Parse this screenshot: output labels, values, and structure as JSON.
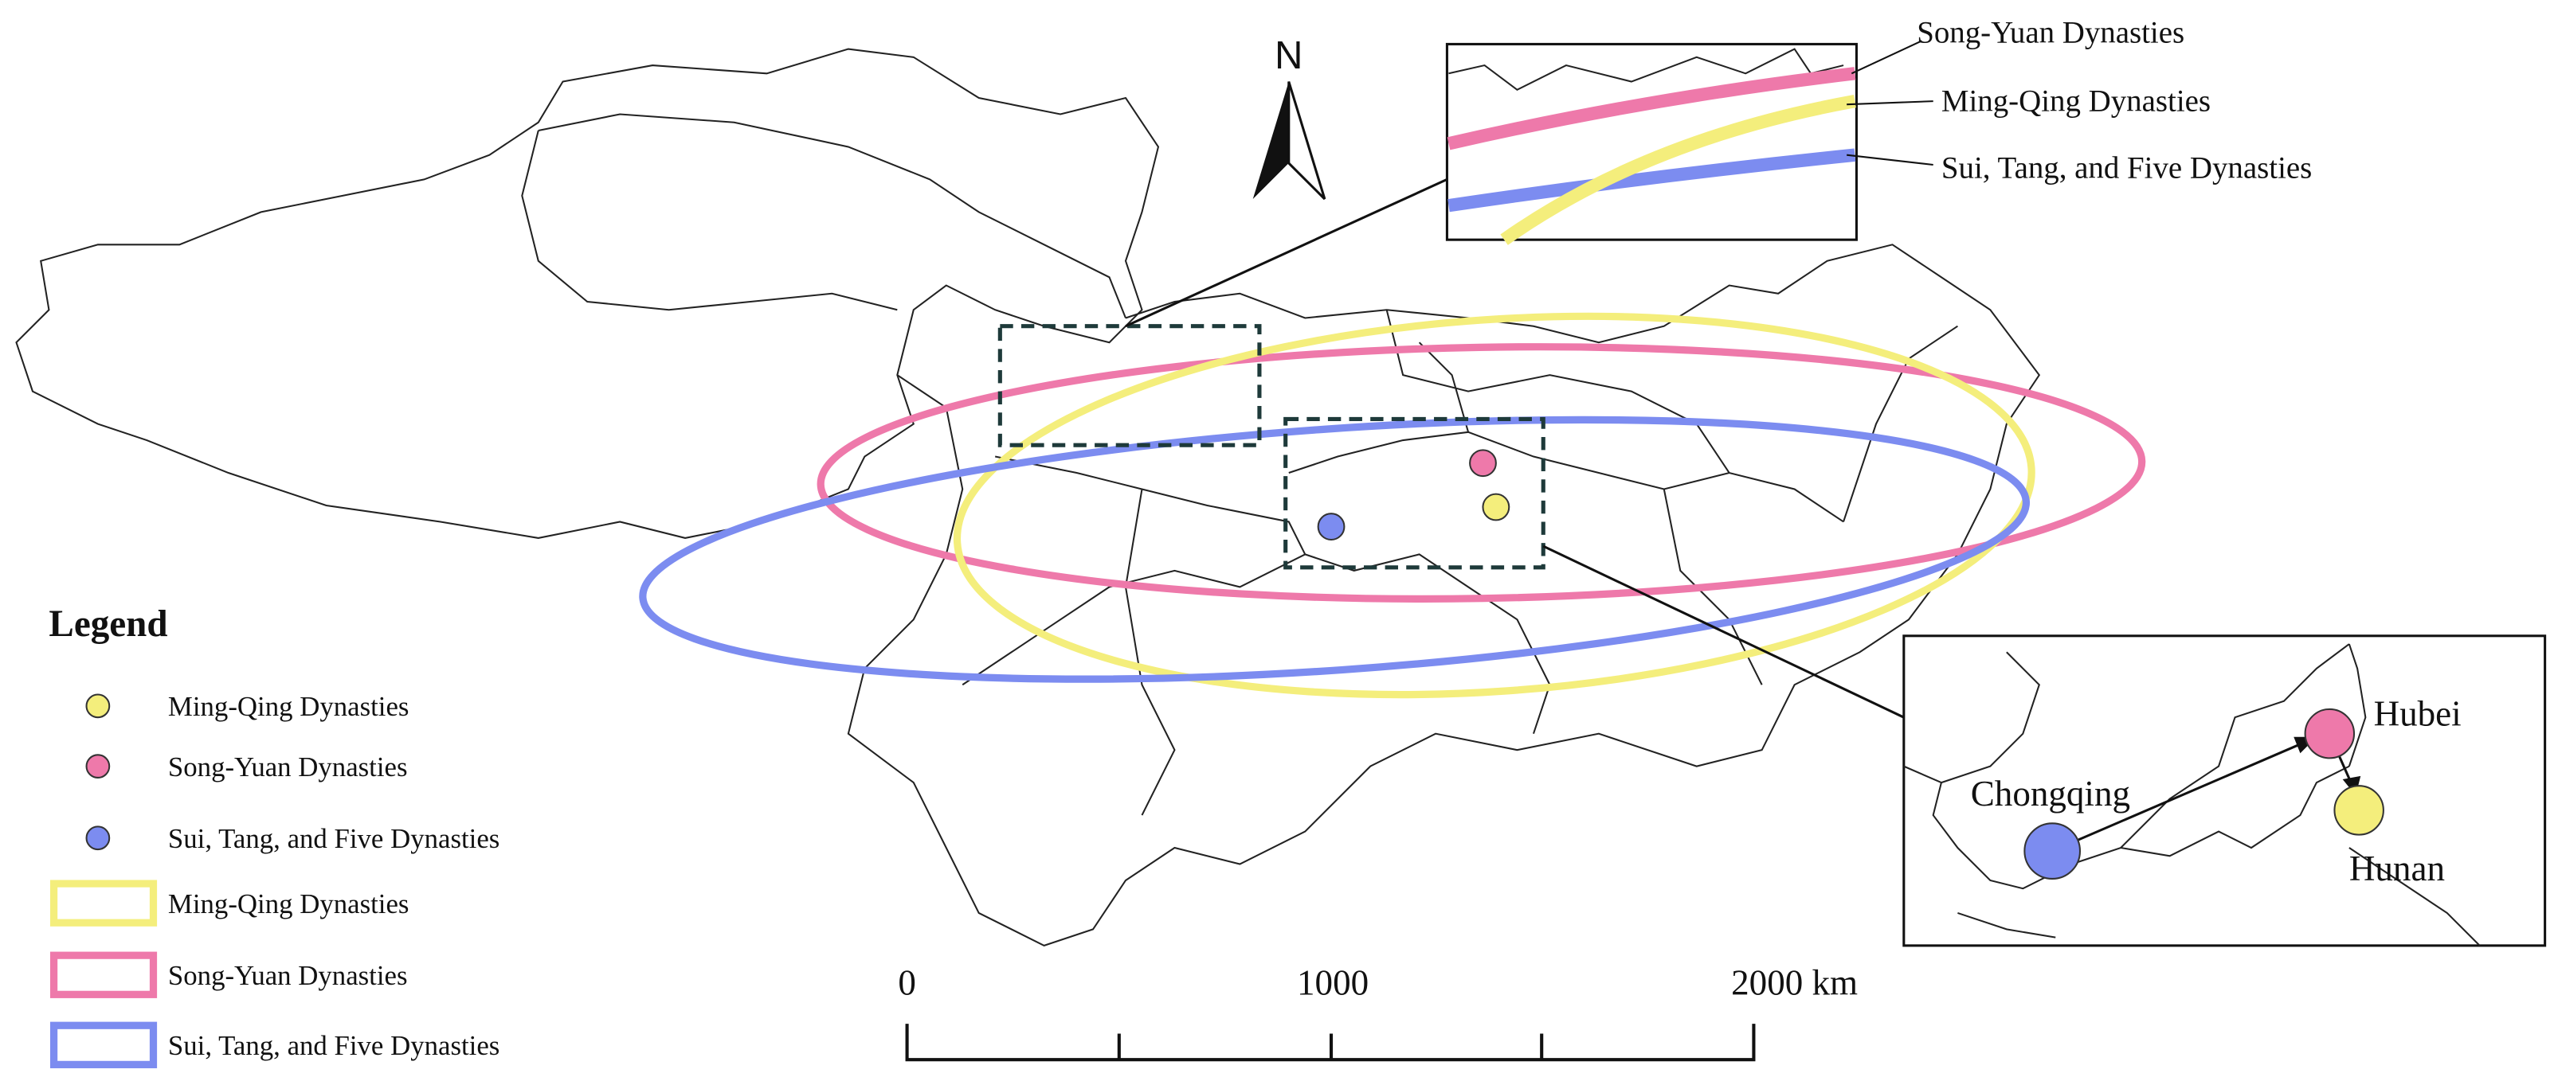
{
  "north": "N",
  "legend": {
    "title": "Legend"
  },
  "series": [
    {
      "name": "Ming-Qing Dynasties",
      "color": "#f4ee7c"
    },
    {
      "name": "Song-Yuan Dynasties",
      "color": "#ee79aa"
    },
    {
      "name": "Sui, Tang, and Five Dynasties",
      "color": "#7c8cf0"
    }
  ],
  "inset": {
    "labels": [
      "Chongqing",
      "Hubei",
      "Hunan"
    ]
  },
  "scale_bar": {
    "labels": [
      "0",
      "1000",
      "2000 km"
    ]
  }
}
